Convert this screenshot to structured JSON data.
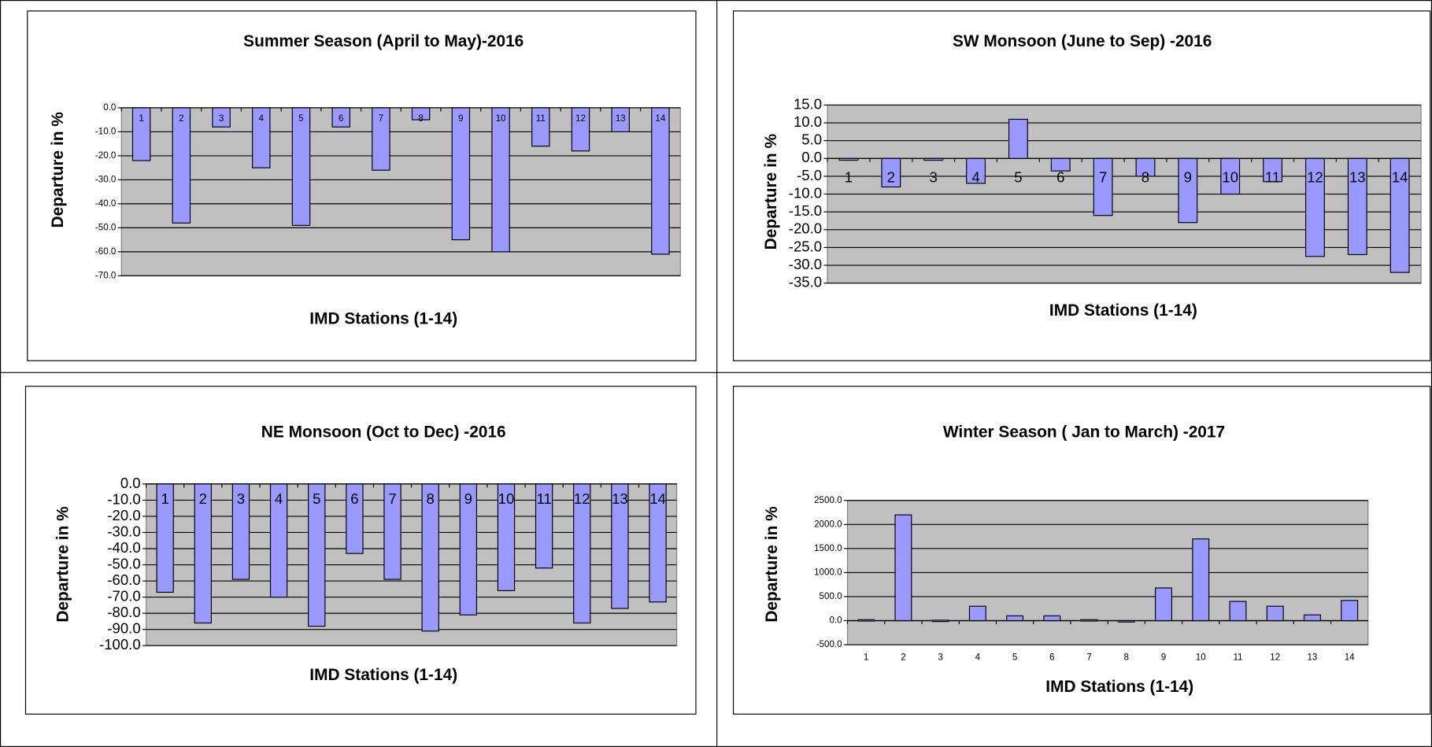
{
  "chart_data": [
    {
      "type": "bar",
      "title": "Summer  Season (April to May)-2016",
      "y_label": "Departure in %",
      "x_label": "IMD Stations (1-14)",
      "categories": [
        "1",
        "2",
        "3",
        "4",
        "5",
        "6",
        "7",
        "8",
        "9",
        "10",
        "11",
        "12",
        "13",
        "14"
      ],
      "values": [
        -22,
        -48,
        -8,
        -25,
        -49,
        -8,
        -26,
        -5,
        -55,
        -60,
        -16,
        -18,
        -10,
        -61
      ],
      "color": "#9999ff",
      "ylim": [
        -70,
        0
      ],
      "yticks": [
        {
          "value": 0,
          "label": "0.0"
        },
        {
          "value": -10,
          "label": "-10.0"
        },
        {
          "value": -20,
          "label": "-20.0"
        },
        {
          "value": -30,
          "label": "-30.0"
        },
        {
          "value": -40,
          "label": "-40.0"
        },
        {
          "value": -50,
          "label": "-50.0"
        },
        {
          "value": -60,
          "label": "-60.0"
        },
        {
          "value": -70,
          "label": "-70.0"
        }
      ],
      "grid": true,
      "category_label_position": "top"
    },
    {
      "type": "bar",
      "title": "SW Monsoon  (June to Sep) -2016",
      "y_label": "Departure in %",
      "x_label": "IMD Stations (1-14)",
      "categories": [
        "1",
        "2",
        "3",
        "4",
        "5",
        "6",
        "7",
        "8",
        "9",
        "10",
        "11",
        "12",
        "13",
        "14"
      ],
      "values": [
        -0.5,
        -8,
        -0.5,
        -7,
        11,
        -3.5,
        -16,
        -5,
        -18,
        -10,
        -6.5,
        -27.5,
        -27,
        -32
      ],
      "color": "#9999ff",
      "ylim": [
        -35,
        15
      ],
      "yticks": [
        {
          "value": 15,
          "label": "15.0"
        },
        {
          "value": 10,
          "label": "10.0"
        },
        {
          "value": 5,
          "label": "5.0"
        },
        {
          "value": 0,
          "label": "0.0"
        },
        {
          "value": -5,
          "label": "-5.0"
        },
        {
          "value": -10,
          "label": "-10.0"
        },
        {
          "value": -15,
          "label": "-15.0"
        },
        {
          "value": -20,
          "label": "-20.0"
        },
        {
          "value": -25,
          "label": "-25.0"
        },
        {
          "value": -30,
          "label": "-30.0"
        },
        {
          "value": -35,
          "label": "-35.0"
        }
      ],
      "grid": true,
      "category_label_position": "axis"
    },
    {
      "type": "bar",
      "title": "NE Monsoon  (Oct  to Dec) -2016",
      "y_label": "Departure in %",
      "x_label": "IMD Stations (1-14)",
      "categories": [
        "1",
        "2",
        "3",
        "4",
        "5",
        "6",
        "7",
        "8",
        "9",
        "10",
        "11",
        "12",
        "13",
        "14"
      ],
      "values": [
        -67,
        -86,
        -59,
        -70,
        -88,
        -43,
        -59,
        -91,
        -81,
        -66,
        -52,
        -86,
        -77,
        -73
      ],
      "color": "#9999ff",
      "ylim": [
        -100,
        0
      ],
      "yticks": [
        {
          "value": 0,
          "label": "0.0"
        },
        {
          "value": -10,
          "label": "-10.0"
        },
        {
          "value": -20,
          "label": "-20.0"
        },
        {
          "value": -30,
          "label": "-30.0"
        },
        {
          "value": -40,
          "label": "-40.0"
        },
        {
          "value": -50,
          "label": "-50.0"
        },
        {
          "value": -60,
          "label": "-60.0"
        },
        {
          "value": -70,
          "label": "-70.0"
        },
        {
          "value": -80,
          "label": "-80.0"
        },
        {
          "value": -90,
          "label": "-90.0"
        },
        {
          "value": -100,
          "label": "-100.0"
        }
      ],
      "grid": true,
      "category_label_position": "top"
    },
    {
      "type": "bar",
      "title": "Winter Season ( Jan to March) -2017",
      "y_label": "Departure in %",
      "x_label": "IMD Stations (1-14)",
      "categories": [
        "1",
        "2",
        "3",
        "4",
        "5",
        "6",
        "7",
        "8",
        "9",
        "10",
        "11",
        "12",
        "13",
        "14"
      ],
      "values": [
        20,
        2200,
        10,
        300,
        100,
        100,
        20,
        -20,
        680,
        1700,
        400,
        300,
        120,
        420
      ],
      "color": "#9999ff",
      "ylim": [
        -500,
        2500
      ],
      "yticks": [
        {
          "value": 2500,
          "label": "2500.0"
        },
        {
          "value": 2000,
          "label": "2000.0"
        },
        {
          "value": 1500,
          "label": "1500.0"
        },
        {
          "value": 1000,
          "label": "1000.0"
        },
        {
          "value": 500,
          "label": "500.0"
        },
        {
          "value": 0,
          "label": "0.0"
        },
        {
          "value": -500,
          "label": "-500.0"
        }
      ],
      "grid": true,
      "category_label_position": "bottom"
    }
  ]
}
